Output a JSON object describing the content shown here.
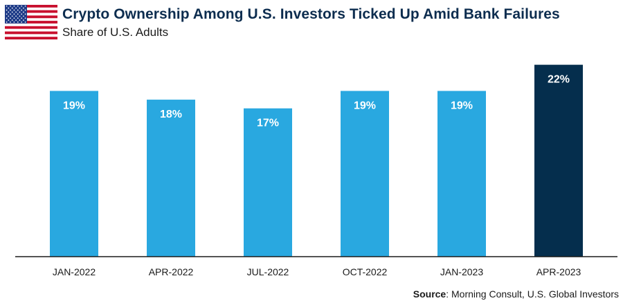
{
  "header": {
    "title": "Crypto Ownership Among U.S. Investors Ticked Up Amid Bank Failures",
    "subtitle": "Share of U.S. Adults",
    "flag_icon": "us-flag-icon"
  },
  "chart_data": {
    "type": "bar",
    "title": "Crypto Ownership Among U.S. Investors Ticked Up Amid Bank Failures",
    "subtitle": "Share of U.S. Adults",
    "xlabel": "",
    "ylabel": "",
    "categories": [
      "JAN-2022",
      "APR-2022",
      "JUL-2022",
      "OCT-2022",
      "JAN-2023",
      "APR-2023"
    ],
    "values": [
      19,
      18,
      17,
      19,
      19,
      22
    ],
    "value_labels": [
      "19%",
      "18%",
      "17%",
      "19%",
      "19%",
      "22%"
    ],
    "ylim": [
      0,
      23
    ],
    "grid": false,
    "colors": {
      "default": "#29a8e0",
      "highlight": "#052e4d",
      "label": "#ffffff",
      "axis": "#1a1a1a"
    },
    "highlight_index": 5
  },
  "footer": {
    "source_label": "Source",
    "source_text": ": Morning Consult, U.S. Global Investors"
  }
}
